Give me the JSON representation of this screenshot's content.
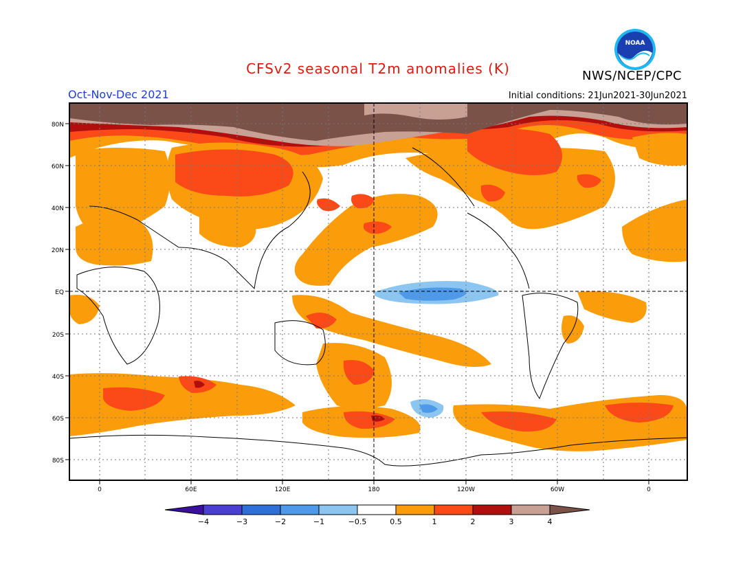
{
  "header": {
    "title": "CFSv2 seasonal T2m anomalies (K)",
    "period": "Oct-Nov-Dec 2021",
    "initial_conditions": "Initial conditions: 21Jun2021-30Jun2021",
    "agency": "NWS/NCEP/CPC",
    "logo_text": "NOAA"
  },
  "colors": {
    "title": "#e0190f",
    "period": "#1f3fd0",
    "c_neg4": "#3b0fa0",
    "c_neg3": "#4a3fd0",
    "c_neg2": "#2e6fd8",
    "c_neg1": "#4e9ae8",
    "c_neg05": "#8cc6f0",
    "c_zero": "#ffffff",
    "c_05": "#fb9d0a",
    "c_1": "#fb4a17",
    "c_2": "#b10e0e",
    "c_3": "#c8a094",
    "c_4": "#7a5248"
  },
  "axes": {
    "x_ticks": [
      "0",
      "60E",
      "120E",
      "180",
      "120W",
      "60W",
      "0"
    ],
    "y_ticks": [
      "80N",
      "60N",
      "40N",
      "20N",
      "EQ",
      "20S",
      "40S",
      "60S",
      "80S"
    ]
  },
  "colorbar": {
    "labels": [
      "−4",
      "−3",
      "−2",
      "−1",
      "−0.5",
      "0.5",
      "1",
      "2",
      "3",
      "4"
    ]
  }
}
